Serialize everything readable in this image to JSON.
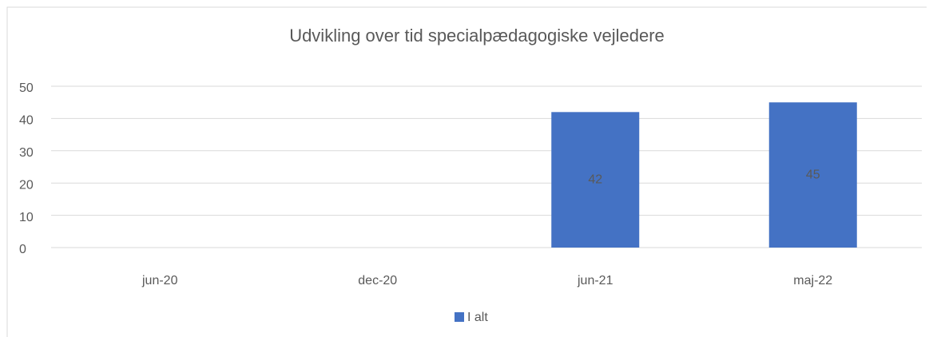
{
  "chart_data": {
    "type": "bar",
    "title": "Udvikling over tid specialpædagogiske vejledere",
    "categories": [
      "jun-20",
      "dec-20",
      "jun-21",
      "maj-22"
    ],
    "series": [
      {
        "name": "I alt",
        "color": "#4472c4",
        "values": [
          null,
          null,
          42,
          45
        ]
      }
    ],
    "ylim": [
      0,
      50
    ],
    "yticks": [
      0,
      10,
      20,
      30,
      40,
      50
    ],
    "grid": true,
    "legend": "bottom",
    "data_labels": true
  }
}
